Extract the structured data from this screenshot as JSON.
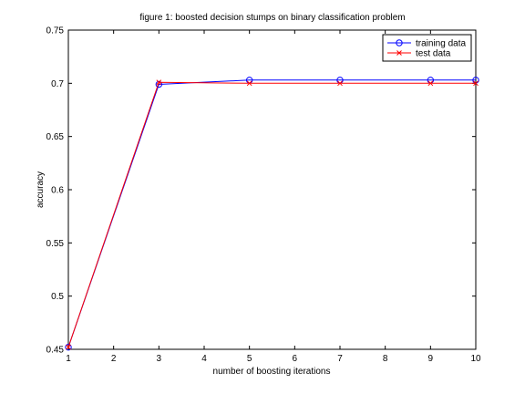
{
  "chart_data": {
    "type": "line",
    "title": "figure 1: boosted decision stumps on binary classification problem",
    "xlabel": "number of boosting iterations",
    "ylabel": "accuracy",
    "xlim": [
      1,
      10
    ],
    "ylim": [
      0.45,
      0.75
    ],
    "xticks": [
      "1",
      "2",
      "3",
      "4",
      "5",
      "6",
      "7",
      "8",
      "9",
      "10"
    ],
    "yticks": [
      "0.45",
      "0.5",
      "0.55",
      "0.6",
      "0.65",
      "0.7",
      "0.75"
    ],
    "grid": false,
    "legend_position": "top-right",
    "x": [
      1,
      3,
      5,
      7,
      9,
      10
    ],
    "series": [
      {
        "name": "training data",
        "color": "#0000ff",
        "marker": "circle",
        "values": [
          0.452,
          0.699,
          0.703,
          0.703,
          0.703,
          0.703
        ]
      },
      {
        "name": "test data",
        "color": "#ff0000",
        "marker": "x",
        "values": [
          0.452,
          0.701,
          0.7,
          0.7,
          0.7,
          0.7
        ]
      }
    ]
  }
}
